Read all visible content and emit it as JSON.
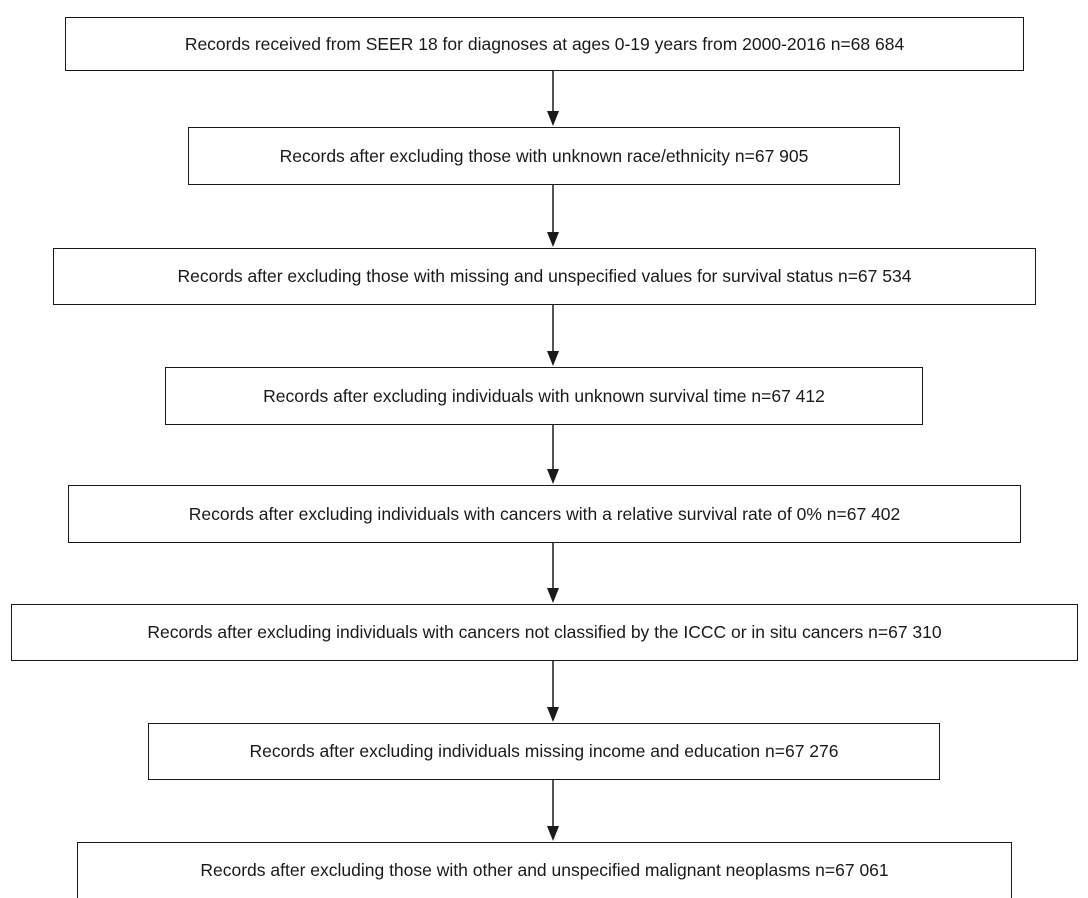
{
  "flowchart": {
    "steps": [
      "Records received from SEER 18 for diagnoses at ages 0-19 years from 2000-2016 n=68 684",
      "Records after excluding those with unknown race/ethnicity n=67 905",
      "Records after excluding those with missing and unspecified values for survival status n=67 534",
      "Records after excluding individuals with unknown survival time n=67 412",
      "Records after excluding individuals with cancers with a relative survival rate of 0% n=67 402",
      "Records after excluding individuals with cancers not classified by the ICCC or in situ cancers n=67 310",
      "Records after excluding individuals missing income and education n=67 276",
      "Records after excluding those with other and unspecified malignant neoplasms n=67 061"
    ]
  },
  "colors": {
    "line": "#1a1a1a",
    "text": "#1a1a1a",
    "background": "#ffffff"
  }
}
